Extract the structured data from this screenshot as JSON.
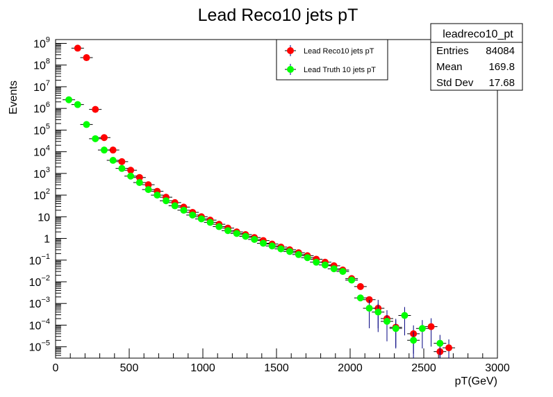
{
  "colors": {
    "background": "#ffffff",
    "frame": "#000000",
    "reco_marker": "#ff0000",
    "truth_marker": "#00ff00",
    "error_bar": "#000080"
  },
  "stats": {
    "title": "leadreco10_pt",
    "rows": [
      {
        "label": "Entries",
        "value": "84084"
      },
      {
        "label": "Mean",
        "value": "169.8"
      },
      {
        "label": "Std Dev",
        "value": "17.68"
      }
    ]
  },
  "chart_data": {
    "type": "scatter",
    "title": "Lead Reco10 jets pT",
    "xlabel": "pT(GeV)",
    "ylabel": "Events",
    "xlim": [
      0,
      3000
    ],
    "ylim": [
      3e-06,
      1500000000.0
    ],
    "yscale": "log",
    "xticks": [
      "0",
      "500",
      "1000",
      "1500",
      "2000",
      "2500",
      "3000"
    ],
    "yticks": [
      {
        "base": "10",
        "exp": "9",
        "value": 1000000000.0
      },
      {
        "base": "10",
        "exp": "8",
        "value": 100000000.0
      },
      {
        "base": "10",
        "exp": "7",
        "value": 10000000.0
      },
      {
        "base": "10",
        "exp": "6",
        "value": 1000000.0
      },
      {
        "base": "10",
        "exp": "5",
        "value": 100000.0
      },
      {
        "base": "10",
        "exp": "4",
        "value": 10000.0
      },
      {
        "base": "10",
        "exp": "3",
        "value": 1000.0
      },
      {
        "base": "10",
        "exp": "2",
        "value": 100.0
      },
      {
        "base": "10",
        "exp": "",
        "value": 10
      },
      {
        "base": "1",
        "exp": "",
        "value": 1
      },
      {
        "base": "10",
        "exp": "−1",
        "value": 0.1
      },
      {
        "base": "10",
        "exp": "−2",
        "value": 0.01
      },
      {
        "base": "10",
        "exp": "−3",
        "value": 0.001
      },
      {
        "base": "10",
        "exp": "−4",
        "value": 0.0001
      },
      {
        "base": "10",
        "exp": "−5",
        "value": 1e-05
      }
    ],
    "legend_position": "top-center",
    "series": [
      {
        "name": "Lead Reco10 jets pT",
        "color": "#ff0000",
        "x": [
          150,
          210,
          270,
          330,
          390,
          450,
          510,
          570,
          630,
          690,
          750,
          810,
          870,
          930,
          990,
          1050,
          1110,
          1170,
          1230,
          1290,
          1350,
          1410,
          1470,
          1530,
          1590,
          1650,
          1710,
          1770,
          1830,
          1890,
          1950,
          2010,
          2070,
          2130,
          2190,
          2250,
          2310,
          2430,
          2550,
          2610,
          2670
        ],
        "y": [
          600000000.0,
          220000000.0,
          900000.0,
          45000.0,
          12000.0,
          3500.0,
          1400.0,
          650,
          300,
          150,
          80,
          45,
          28,
          16,
          10,
          7,
          4.5,
          3,
          2,
          1.5,
          1.1,
          0.8,
          0.55,
          0.4,
          0.3,
          0.22,
          0.16,
          0.11,
          0.08,
          0.055,
          0.035,
          0.014,
          0.006,
          0.0015,
          0.0006,
          0.0002,
          8e-05,
          4e-05,
          8.5e-05,
          6e-06,
          9e-06
        ]
      },
      {
        "name": "Lead Truth 10 jets pT",
        "color": "#00ff00",
        "x": [
          90,
          150,
          210,
          270,
          330,
          390,
          450,
          510,
          570,
          630,
          690,
          750,
          810,
          870,
          930,
          990,
          1050,
          1110,
          1170,
          1230,
          1290,
          1350,
          1410,
          1470,
          1530,
          1590,
          1650,
          1710,
          1770,
          1830,
          1890,
          1950,
          2010,
          2070,
          2130,
          2190,
          2250,
          2310,
          2370,
          2430,
          2490,
          2610
        ],
        "y": [
          2500000.0,
          1500000.0,
          180000.0,
          40000.0,
          12000.0,
          4000.0,
          1700.0,
          750,
          380,
          180,
          100,
          55,
          32,
          20,
          12,
          8,
          5.5,
          3.5,
          2.3,
          1.7,
          1.25,
          0.9,
          0.6,
          0.45,
          0.33,
          0.25,
          0.18,
          0.13,
          0.08,
          0.06,
          0.04,
          0.03,
          0.012,
          0.0018,
          0.0006,
          0.0004,
          0.00015,
          7e-05,
          0.00028,
          2e-05,
          7e-05,
          1.45e-05
        ]
      }
    ]
  }
}
